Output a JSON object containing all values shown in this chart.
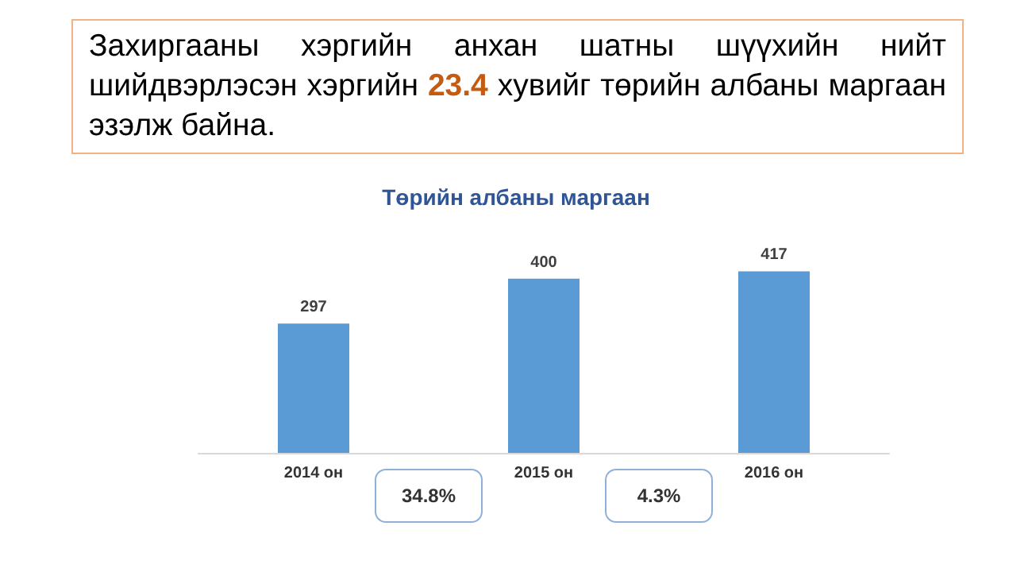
{
  "chart_data": {
    "type": "bar",
    "title": "Төрийн албаны маргаан",
    "categories": [
      "2014 он",
      "2015 он",
      "2016 он"
    ],
    "values": [
      297,
      400,
      417
    ],
    "color": "#5b9bd5",
    "data_labels": true,
    "annotations": [
      "Захиргааны хэргийн анхан шатны шүүхийн нийт шийдвэрлэсэн хэргийн 23.4 хувийг төрийн албаны маргаан эзэлж байна.",
      "34.8%",
      "4.3%"
    ]
  }
}
